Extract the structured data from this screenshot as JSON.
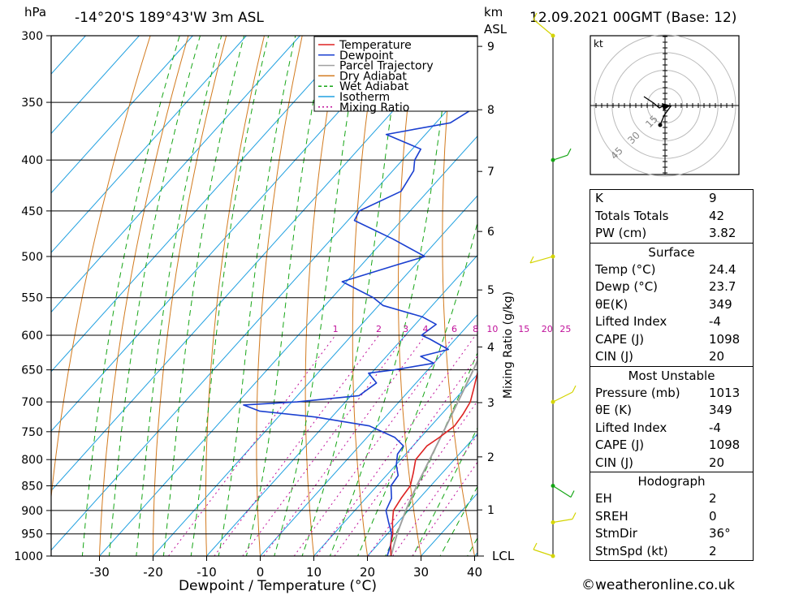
{
  "header": {
    "left_unit": "hPa",
    "location": "-14°20'S  189°43'W  3m  ASL",
    "km_unit": "km",
    "asl_unit": "ASL",
    "datetime": "12.09.2021  00GMT  (Base: 12)"
  },
  "colors": {
    "temperature": "#dd2222",
    "dewpoint": "#1a3fd0",
    "parcel": "#a0a0a0",
    "dry_adiabat": "#d27a1e",
    "wet_adiabat": "#15a515",
    "isotherm": "#20a0e0",
    "mixing_ratio": "#c0109a",
    "wind_barb": "#d4d400",
    "wind_barb_green": "#15a515"
  },
  "legend": [
    "Temperature",
    "Dewpoint",
    "Parcel Trajectory",
    "Dry Adiabat",
    "Wet Adiabat",
    "Isotherm",
    "Mixing Ratio"
  ],
  "chart_data": {
    "type": "line",
    "title": "",
    "xlabel": "Dewpoint / Temperature (°C)",
    "ylabel": "hPa",
    "y2label": "Mixing Ratio (g/kg)",
    "x_ticks": [
      -30,
      -20,
      -10,
      0,
      10,
      20,
      30,
      40
    ],
    "pressure_ticks": [
      300,
      350,
      400,
      450,
      500,
      550,
      600,
      650,
      700,
      750,
      800,
      850,
      900,
      950,
      1000
    ],
    "km_ticks": [
      1,
      2,
      3,
      4,
      5,
      6,
      7,
      8,
      9
    ],
    "mixing_ratio_labels": [
      1,
      2,
      3,
      4,
      6,
      8,
      10,
      15,
      20,
      25
    ],
    "lcl_label": "LCL",
    "temperature": [
      {
        "p": 1005,
        "t": 25.2
      },
      {
        "p": 1000,
        "t": 24.4
      },
      {
        "p": 975,
        "t": 22.5
      },
      {
        "p": 950,
        "t": 21.0
      },
      {
        "p": 925,
        "t": 19.0
      },
      {
        "p": 900,
        "t": 17.2
      },
      {
        "p": 875,
        "t": 16.6
      },
      {
        "p": 850,
        "t": 16.2
      },
      {
        "p": 825,
        "t": 14.6
      },
      {
        "p": 800,
        "t": 12.8
      },
      {
        "p": 775,
        "t": 12.6
      },
      {
        "p": 760,
        "t": 13.5
      },
      {
        "p": 740,
        "t": 14.4
      },
      {
        "p": 720,
        "t": 14.0
      },
      {
        "p": 700,
        "t": 13.3
      },
      {
        "p": 680,
        "t": 11.8
      },
      {
        "p": 650,
        "t": 9.4
      },
      {
        "p": 620,
        "t": 6.8
      },
      {
        "p": 600,
        "t": 5.0
      },
      {
        "p": 575,
        "t": 2.4
      },
      {
        "p": 550,
        "t": 0.0
      },
      {
        "p": 525,
        "t": -2.6
      },
      {
        "p": 500,
        "t": -5.6
      },
      {
        "p": 475,
        "t": -8.1
      },
      {
        "p": 450,
        "t": -10.6
      },
      {
        "p": 425,
        "t": -13.2
      },
      {
        "p": 400,
        "t": -16.9
      },
      {
        "p": 385,
        "t": -18.7
      },
      {
        "p": 375,
        "t": -20.3
      },
      {
        "p": 365,
        "t": -21.4
      },
      {
        "p": 355,
        "t": -23.1
      },
      {
        "p": 345,
        "t": -24.8
      },
      {
        "p": 330,
        "t": -27.4
      },
      {
        "p": 315,
        "t": -30.4
      },
      {
        "p": 300,
        "t": -33.5
      }
    ],
    "dewpoint": [
      {
        "p": 1000,
        "t": 23.7
      },
      {
        "p": 975,
        "t": 22.5
      },
      {
        "p": 950,
        "t": 20.8
      },
      {
        "p": 925,
        "t": 18.3
      },
      {
        "p": 900,
        "t": 15.8
      },
      {
        "p": 875,
        "t": 14.8
      },
      {
        "p": 850,
        "t": 12.6
      },
      {
        "p": 830,
        "t": 12.2
      },
      {
        "p": 810,
        "t": 10.1
      },
      {
        "p": 790,
        "t": 8.5
      },
      {
        "p": 775,
        "t": 8.2
      },
      {
        "p": 760,
        "t": 5.2
      },
      {
        "p": 740,
        "t": -1.5
      },
      {
        "p": 725,
        "t": -13.0
      },
      {
        "p": 715,
        "t": -24.5
      },
      {
        "p": 705,
        "t": -28.5
      },
      {
        "p": 700,
        "t": -19.0
      },
      {
        "p": 690,
        "t": -8.5
      },
      {
        "p": 670,
        "t": -7.4
      },
      {
        "p": 655,
        "t": -10.5
      },
      {
        "p": 650,
        "t": -6.2
      },
      {
        "p": 640,
        "t": 0.0
      },
      {
        "p": 630,
        "t": -3.6
      },
      {
        "p": 620,
        "t": 0.4
      },
      {
        "p": 605,
        "t": -4.9
      },
      {
        "p": 600,
        "t": -7.0
      },
      {
        "p": 585,
        "t": -6.1
      },
      {
        "p": 575,
        "t": -9.9
      },
      {
        "p": 560,
        "t": -19.2
      },
      {
        "p": 550,
        "t": -22.3
      },
      {
        "p": 530,
        "t": -30.8
      },
      {
        "p": 510,
        "t": -23.5
      },
      {
        "p": 500,
        "t": -19.6
      },
      {
        "p": 480,
        "t": -28.6
      },
      {
        "p": 460,
        "t": -38.8
      },
      {
        "p": 450,
        "t": -39.5
      },
      {
        "p": 430,
        "t": -35.0
      },
      {
        "p": 410,
        "t": -36.1
      },
      {
        "p": 400,
        "t": -37.7
      },
      {
        "p": 390,
        "t": -38.4
      },
      {
        "p": 377,
        "t": -47.3
      },
      {
        "p": 367,
        "t": -37.3
      },
      {
        "p": 350,
        "t": -34.6
      },
      {
        "p": 342,
        "t": -38.0
      },
      {
        "p": 325,
        "t": -43.6
      },
      {
        "p": 312,
        "t": -44.3
      },
      {
        "p": 300,
        "t": -43.4
      }
    ],
    "parcel": [
      {
        "p": 1000,
        "t": 24.4
      },
      {
        "p": 950,
        "t": 21.8
      },
      {
        "p": 900,
        "t": 19.5
      },
      {
        "p": 850,
        "t": 17.4
      },
      {
        "p": 800,
        "t": 15.4
      },
      {
        "p": 750,
        "t": 13.3
      },
      {
        "p": 700,
        "t": 11.0
      },
      {
        "p": 650,
        "t": 8.5
      },
      {
        "p": 600,
        "t": 5.6
      },
      {
        "p": 550,
        "t": 2.3
      },
      {
        "p": 500,
        "t": -1.5
      },
      {
        "p": 450,
        "t": -6.3
      },
      {
        "p": 400,
        "t": -12.1
      },
      {
        "p": 350,
        "t": -19.9
      },
      {
        "p": 300,
        "t": -30.5
      }
    ],
    "wind_barbs_hpa": [
      300,
      400,
      500,
      700,
      850,
      925,
      1000
    ],
    "hodograph": {
      "unit": "kt",
      "ring_labels": [
        "15",
        "30",
        "45"
      ]
    }
  },
  "indices": {
    "general": [
      {
        "label": "K",
        "value": "9"
      },
      {
        "label": "Totals Totals",
        "value": "42"
      },
      {
        "label": "PW (cm)",
        "value": "3.82"
      }
    ],
    "surface": {
      "title": "Surface",
      "rows": [
        {
          "label": "Temp (°C)",
          "value": "24.4"
        },
        {
          "label": "Dewp (°C)",
          "value": "23.7"
        },
        {
          "label": "θE(K)",
          "value": "349"
        },
        {
          "label": "Lifted Index",
          "value": "-4"
        },
        {
          "label": "CAPE (J)",
          "value": "1098"
        },
        {
          "label": "CIN (J)",
          "value": "20"
        }
      ]
    },
    "most_unstable": {
      "title": "Most Unstable",
      "rows": [
        {
          "label": "Pressure (mb)",
          "value": "1013"
        },
        {
          "label": "θE (K)",
          "value": "349"
        },
        {
          "label": "Lifted Index",
          "value": "-4"
        },
        {
          "label": "CAPE (J)",
          "value": "1098"
        },
        {
          "label": "CIN (J)",
          "value": "20"
        }
      ]
    },
    "hodograph": {
      "title": "Hodograph",
      "rows": [
        {
          "label": "EH",
          "value": "2"
        },
        {
          "label": "SREH",
          "value": "0"
        },
        {
          "label": "StmDir",
          "value": "36°"
        },
        {
          "label": "StmSpd (kt)",
          "value": "2"
        }
      ]
    }
  },
  "footer": {
    "credit": "©weatheronline.co.uk"
  }
}
